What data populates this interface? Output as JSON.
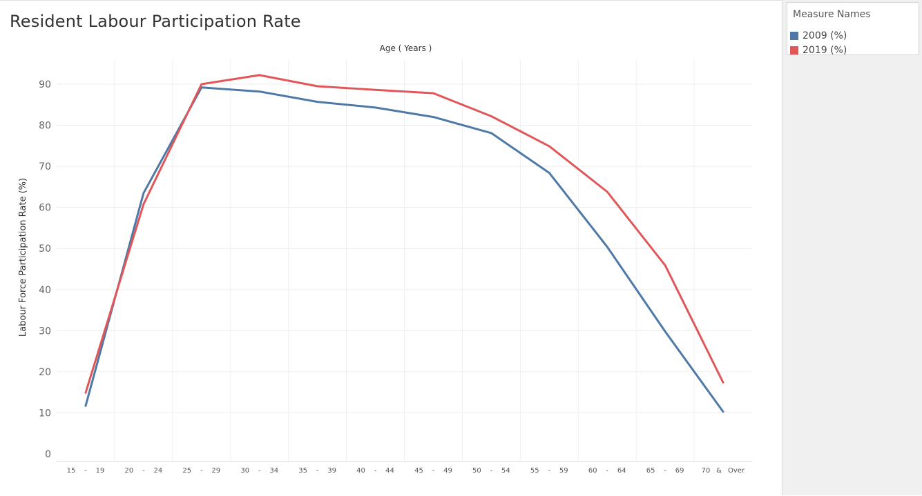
{
  "chart_data": {
    "type": "line",
    "title": "Resident Labour Participation Rate",
    "xlabel": "Age ( Years )",
    "ylabel": "Labour Force Participation Rate (%)",
    "categories": [
      "15 - 19",
      "20 - 24",
      "25 - 29",
      "30 - 34",
      "35 - 39",
      "40 - 44",
      "45 - 49",
      "50 - 54",
      "55 - 59",
      "60 - 64",
      "65 - 69",
      "70 & Over"
    ],
    "category_tick_parts": [
      [
        "15",
        "-",
        "19"
      ],
      [
        "20",
        "-",
        "24"
      ],
      [
        "25",
        "-",
        "29"
      ],
      [
        "30",
        "-",
        "34"
      ],
      [
        "35",
        "-",
        "39"
      ],
      [
        "40",
        "-",
        "44"
      ],
      [
        "45",
        "-",
        "49"
      ],
      [
        "50",
        "-",
        "54"
      ],
      [
        "55",
        "-",
        "59"
      ],
      [
        "60",
        "-",
        "64"
      ],
      [
        "65",
        "-",
        "69"
      ],
      [
        "70",
        "&",
        "Over"
      ]
    ],
    "series": [
      {
        "name": "2009 (%)",
        "color": "#4e79a7",
        "values": [
          11.7,
          63.5,
          89.2,
          88.2,
          85.7,
          84.3,
          82.0,
          78.1,
          68.4,
          50.4,
          29.8,
          10.3
        ]
      },
      {
        "name": "2019 (%)",
        "color": "#e15759",
        "values": [
          14.9,
          60.8,
          90.0,
          92.2,
          89.5,
          88.6,
          87.8,
          82.2,
          74.9,
          63.8,
          45.9,
          17.4
        ]
      }
    ],
    "ylim": [
      0,
      100
    ],
    "yticks": [
      0,
      10,
      20,
      30,
      40,
      50,
      60,
      70,
      80,
      90
    ],
    "grid": true,
    "legend_position": "right"
  },
  "legend": {
    "title": "Measure Names"
  }
}
